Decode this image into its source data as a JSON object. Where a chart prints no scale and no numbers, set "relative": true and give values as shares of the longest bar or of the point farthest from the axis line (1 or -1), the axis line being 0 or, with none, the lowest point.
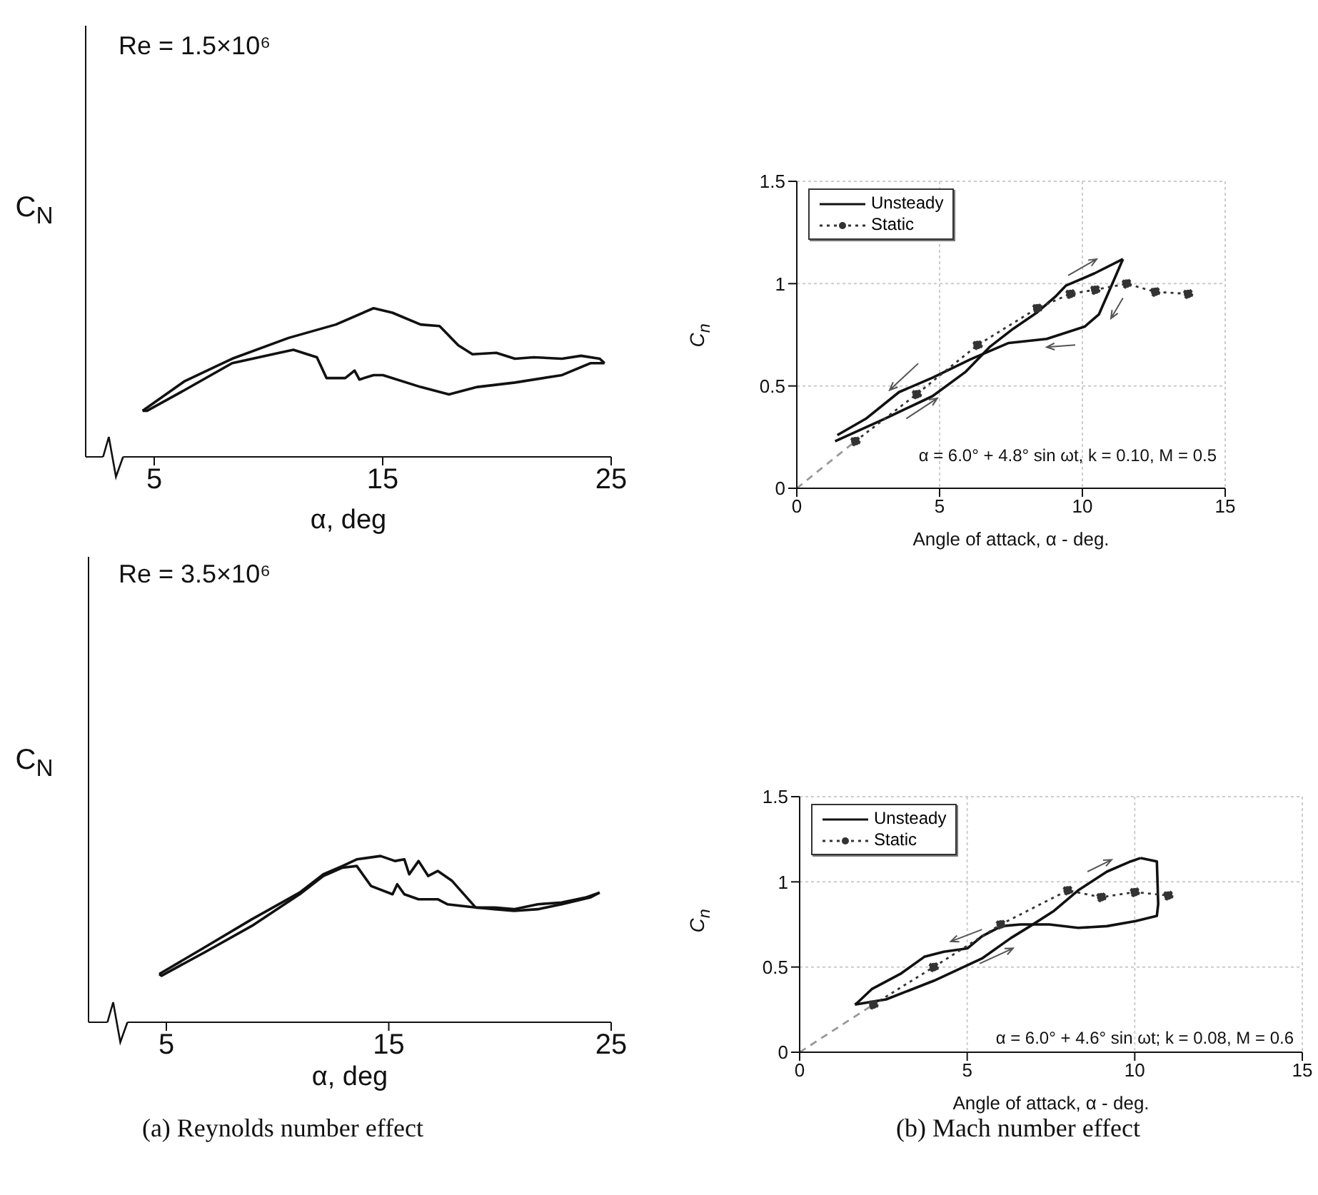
{
  "chart_data": [
    {
      "type": "line",
      "relative": true,
      "tick_labels": "x",
      "marker": "none",
      "line_style": "solid",
      "xlabel": "α, deg",
      "ylabel": "C$_{N}$",
      "annotations": [
        "Re = 1.5×10⁶"
      ],
      "xlim": [
        2,
        25
      ],
      "xticks": [
        5,
        15,
        25
      ],
      "series": [
        {
          "color": "#111111",
          "x": [
            4.49,
            6.34,
            8.41,
            10.88,
            12.95,
            14.6,
            15.42,
            16.66,
            17.49,
            18.31,
            18.93,
            19.97,
            20.79,
            21.61,
            22.85,
            23.68,
            24.5,
            24.71
          ],
          "values": [
            0.31,
            0.51,
            0.66,
            0.8,
            0.89,
            1.0,
            0.97,
            0.89,
            0.88,
            0.75,
            0.69,
            0.7,
            0.66,
            0.67,
            0.66,
            0.68,
            0.66,
            0.63
          ]
        },
        {
          "color": "#111111",
          "x": [
            24.71,
            24.09,
            22.85,
            20.79,
            19.14,
            17.9,
            16.66,
            15.01,
            14.6,
            13.98,
            13.77,
            13.36,
            12.54,
            12.12,
            11.09,
            10.47,
            8.41,
            6.34,
            4.69,
            4.49
          ],
          "values": [
            0.63,
            0.63,
            0.55,
            0.5,
            0.47,
            0.42,
            0.47,
            0.55,
            0.55,
            0.52,
            0.58,
            0.53,
            0.53,
            0.67,
            0.72,
            0.7,
            0.63,
            0.45,
            0.31,
            0.31
          ]
        }
      ]
    },
    {
      "type": "line",
      "xlabel": "Angle of attack, α - deg.",
      "ylabel": "C$_{n}$",
      "annotations": [
        "α = 6.0° + 4.8° sin ωt, k = 0.10, M = 0.5"
      ],
      "xlim": [
        0,
        15
      ],
      "xticks": [
        0,
        5,
        10,
        15
      ],
      "ylim": [
        0,
        1.5
      ],
      "yticks": [
        0,
        0.5,
        1,
        1.5
      ],
      "grid": true,
      "legend": "top left",
      "series": [
        {
          "name": "Unsteady",
          "color": "#111111",
          "line_style": "solid",
          "marker": "none",
          "x": [
            1.34,
            3.08,
            4.75,
            5.92,
            6.75,
            7.58,
            8.42,
            9.08,
            9.42,
            10.42,
            11.42
          ],
          "values": [
            0.23,
            0.34,
            0.45,
            0.57,
            0.69,
            0.78,
            0.86,
            0.94,
            0.99,
            1.05,
            1.12
          ]
        },
        {
          "color": "#111111",
          "line_style": "solid",
          "marker": "none",
          "x": [
            11.42,
            11.08,
            10.58,
            10.08,
            8.75,
            7.42,
            6.08,
            4.75,
            3.58,
            2.42,
            1.42
          ],
          "values": [
            1.12,
            1.01,
            0.85,
            0.79,
            0.73,
            0.71,
            0.63,
            0.54,
            0.47,
            0.34,
            0.26
          ]
        },
        {
          "name": "Static",
          "color": "#333333",
          "line_style": "dotted",
          "marker": "circle",
          "x": [
            2.05,
            4.2,
            6.33,
            8.42,
            9.58,
            10.45,
            11.55,
            12.55,
            13.7
          ],
          "values": [
            0.23,
            0.46,
            0.7,
            0.88,
            0.95,
            0.97,
            1.0,
            0.96,
            0.95
          ]
        },
        {
          "color": "#999999",
          "line_style": "dashed",
          "marker": "none",
          "x": [
            0,
            2.05
          ],
          "values": [
            0,
            0.23
          ]
        }
      ]
    },
    {
      "type": "line",
      "relative": true,
      "tick_labels": "x",
      "marker": "none",
      "line_style": "solid",
      "xlabel": "α, deg",
      "ylabel": "C$_{N}$",
      "annotations": [
        "Re = 3.5×10⁶",
        "(a) Reynolds number effect"
      ],
      "xlim": [
        1.5,
        25
      ],
      "xticks": [
        5,
        15,
        25
      ],
      "series": [
        {
          "color": "#111111",
          "x": [
            4.68,
            6.71,
            8.85,
            10.99,
            12.06,
            12.92,
            13.56,
            14.63,
            15.28,
            15.7,
            15.92,
            16.34,
            16.77,
            17.2,
            17.85,
            18.91,
            19.77,
            20.63,
            21.7,
            22.77,
            23.84,
            24.48
          ],
          "values": [
            0.29,
            0.45,
            0.62,
            0.78,
            0.89,
            0.94,
            0.98,
            1.0,
            0.97,
            0.98,
            0.89,
            0.97,
            0.88,
            0.91,
            0.85,
            0.69,
            0.69,
            0.68,
            0.71,
            0.72,
            0.75,
            0.78
          ]
        },
        {
          "color": "#111111",
          "x": [
            24.48,
            24.05,
            22.77,
            21.7,
            20.63,
            19.77,
            18.91,
            17.63,
            17.2,
            16.34,
            15.7,
            15.38,
            15.17,
            14.2,
            13.56,
            12.92,
            12.06,
            10.99,
            8.85,
            6.71,
            4.78,
            4.68
          ],
          "values": [
            0.78,
            0.75,
            0.71,
            0.68,
            0.67,
            0.68,
            0.69,
            0.71,
            0.74,
            0.74,
            0.77,
            0.83,
            0.77,
            0.82,
            0.94,
            0.93,
            0.88,
            0.77,
            0.58,
            0.42,
            0.28,
            0.29
          ]
        }
      ]
    },
    {
      "type": "line",
      "xlabel": "Angle of attack, α - deg.",
      "ylabel": "C$_{n}$",
      "annotations": [
        "α = 6.0° + 4.6° sin ωt; k = 0.08, M = 0.6",
        "(b) Mach number effect"
      ],
      "xlim": [
        0,
        15
      ],
      "xticks": [
        0,
        5,
        10,
        15
      ],
      "ylim": [
        0,
        1.5
      ],
      "yticks": [
        0,
        0.5,
        1,
        1.5
      ],
      "grid": true,
      "legend": "top left",
      "series": [
        {
          "name": "Unsteady",
          "color": "#111111",
          "line_style": "solid",
          "marker": "none",
          "x": [
            1.65,
            2.58,
            4.01,
            5.44,
            6.3,
            6.88,
            7.59,
            8.31,
            9.17,
            9.88,
            10.18
          ],
          "values": [
            0.28,
            0.31,
            0.42,
            0.55,
            0.67,
            0.74,
            0.83,
            0.95,
            1.06,
            1.12,
            1.14
          ]
        },
        {
          "color": "#111111",
          "line_style": "solid",
          "marker": "none",
          "x": [
            10.18,
            10.66,
            10.7,
            10.66,
            10.03,
            9.17,
            8.31,
            7.45,
            6.59,
            6.02,
            5.44,
            5.01,
            4.3,
            3.72,
            3.01,
            2.15,
            1.72,
            1.65
          ],
          "values": [
            1.14,
            1.12,
            0.87,
            0.8,
            0.77,
            0.74,
            0.73,
            0.75,
            0.75,
            0.74,
            0.68,
            0.61,
            0.59,
            0.56,
            0.46,
            0.37,
            0.29,
            0.28
          ]
        },
        {
          "name": "Static",
          "color": "#333333",
          "line_style": "dotted",
          "marker": "circle",
          "x": [
            2.2,
            4,
            6,
            8,
            9,
            10,
            11
          ],
          "values": [
            0.28,
            0.5,
            0.75,
            0.95,
            0.91,
            0.94,
            0.92
          ]
        },
        {
          "color": "#999999",
          "line_style": "dashed",
          "marker": "none",
          "x": [
            0,
            2.2
          ],
          "values": [
            0,
            0.28
          ]
        }
      ]
    }
  ]
}
